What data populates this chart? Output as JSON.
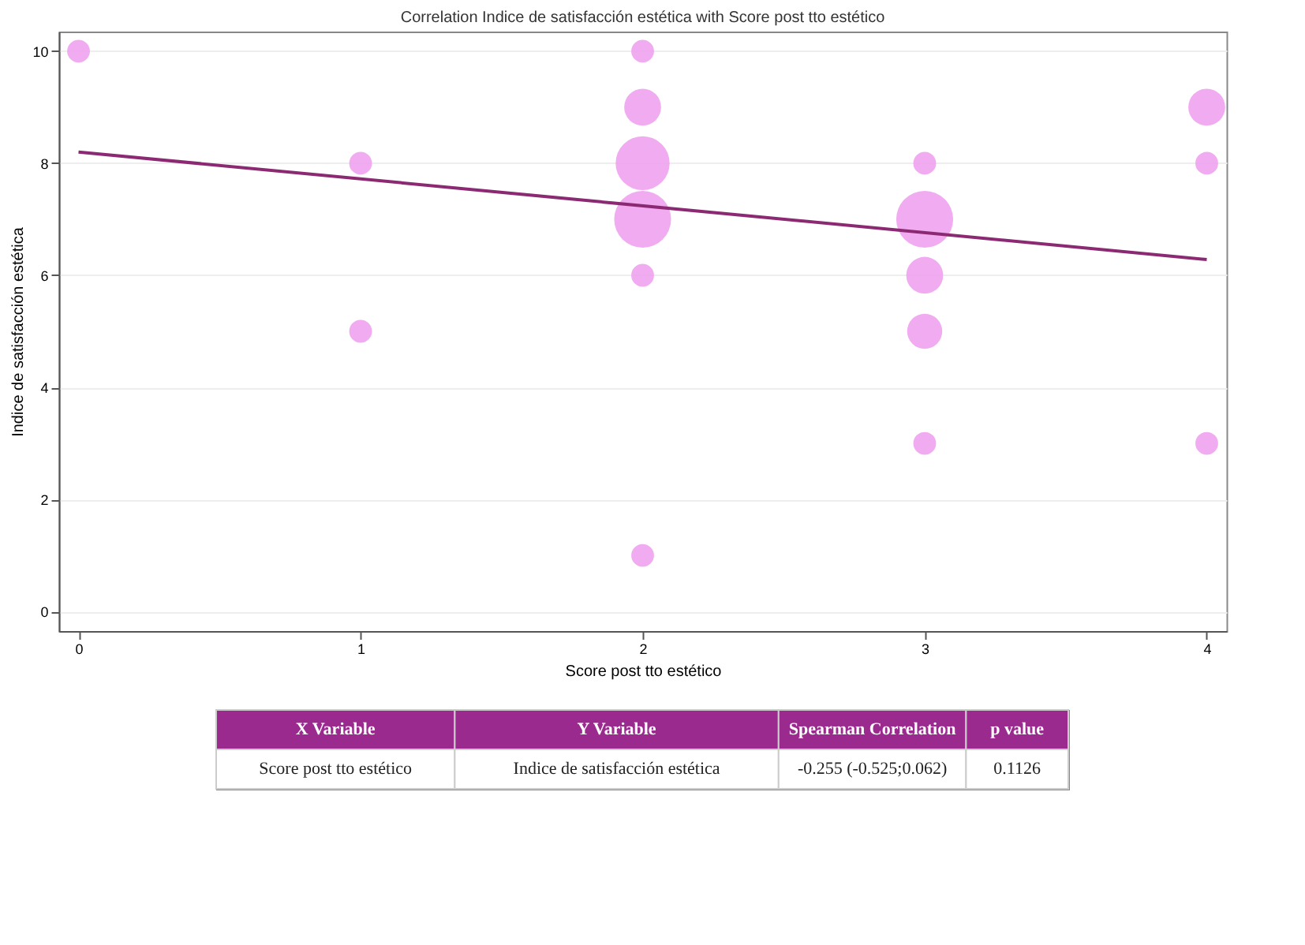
{
  "chart_data": {
    "type": "bubble",
    "title": "Correlation Indice de satisfacción estética with Score post tto estético",
    "xlabel": "Score post tto estético",
    "ylabel": "Indice de satisfacción estética",
    "xlim": [
      -0.07,
      4.07
    ],
    "xticks": [
      0,
      1,
      2,
      3,
      4
    ],
    "ylim": [
      -0.35,
      10.35
    ],
    "yticks": [
      0,
      2,
      4,
      6,
      8,
      10
    ],
    "grid": "y",
    "series": [
      {
        "color": "#ee9cee",
        "x": [
          0,
          1,
          1,
          2,
          2,
          2,
          2,
          2,
          2,
          3,
          3,
          3,
          3,
          3,
          4,
          4,
          4
        ],
        "values": [
          10,
          8,
          5,
          10,
          9,
          8,
          7,
          6,
          1,
          8,
          7,
          6,
          5,
          3,
          9,
          8,
          3
        ],
        "sizes": [
          0.16,
          0.16,
          0.16,
          0.16,
          0.42,
          0.9,
          1,
          0.16,
          0.16,
          0.16,
          1,
          0.42,
          0.38,
          0.16,
          0.42,
          0.16,
          0.16
        ]
      },
      {
        "type": "line",
        "color": "#8b2a72",
        "x": [
          0,
          4
        ],
        "values": [
          8.2,
          6.28
        ]
      }
    ],
    "annotations": [
      "X Variable",
      "Y Variable",
      "Spearman Correlation",
      "p value",
      "Score post tto estético",
      "Indice de satisfacción estética",
      "-0.255 (-0.525;0.062)",
      "0.1126"
    ]
  }
}
